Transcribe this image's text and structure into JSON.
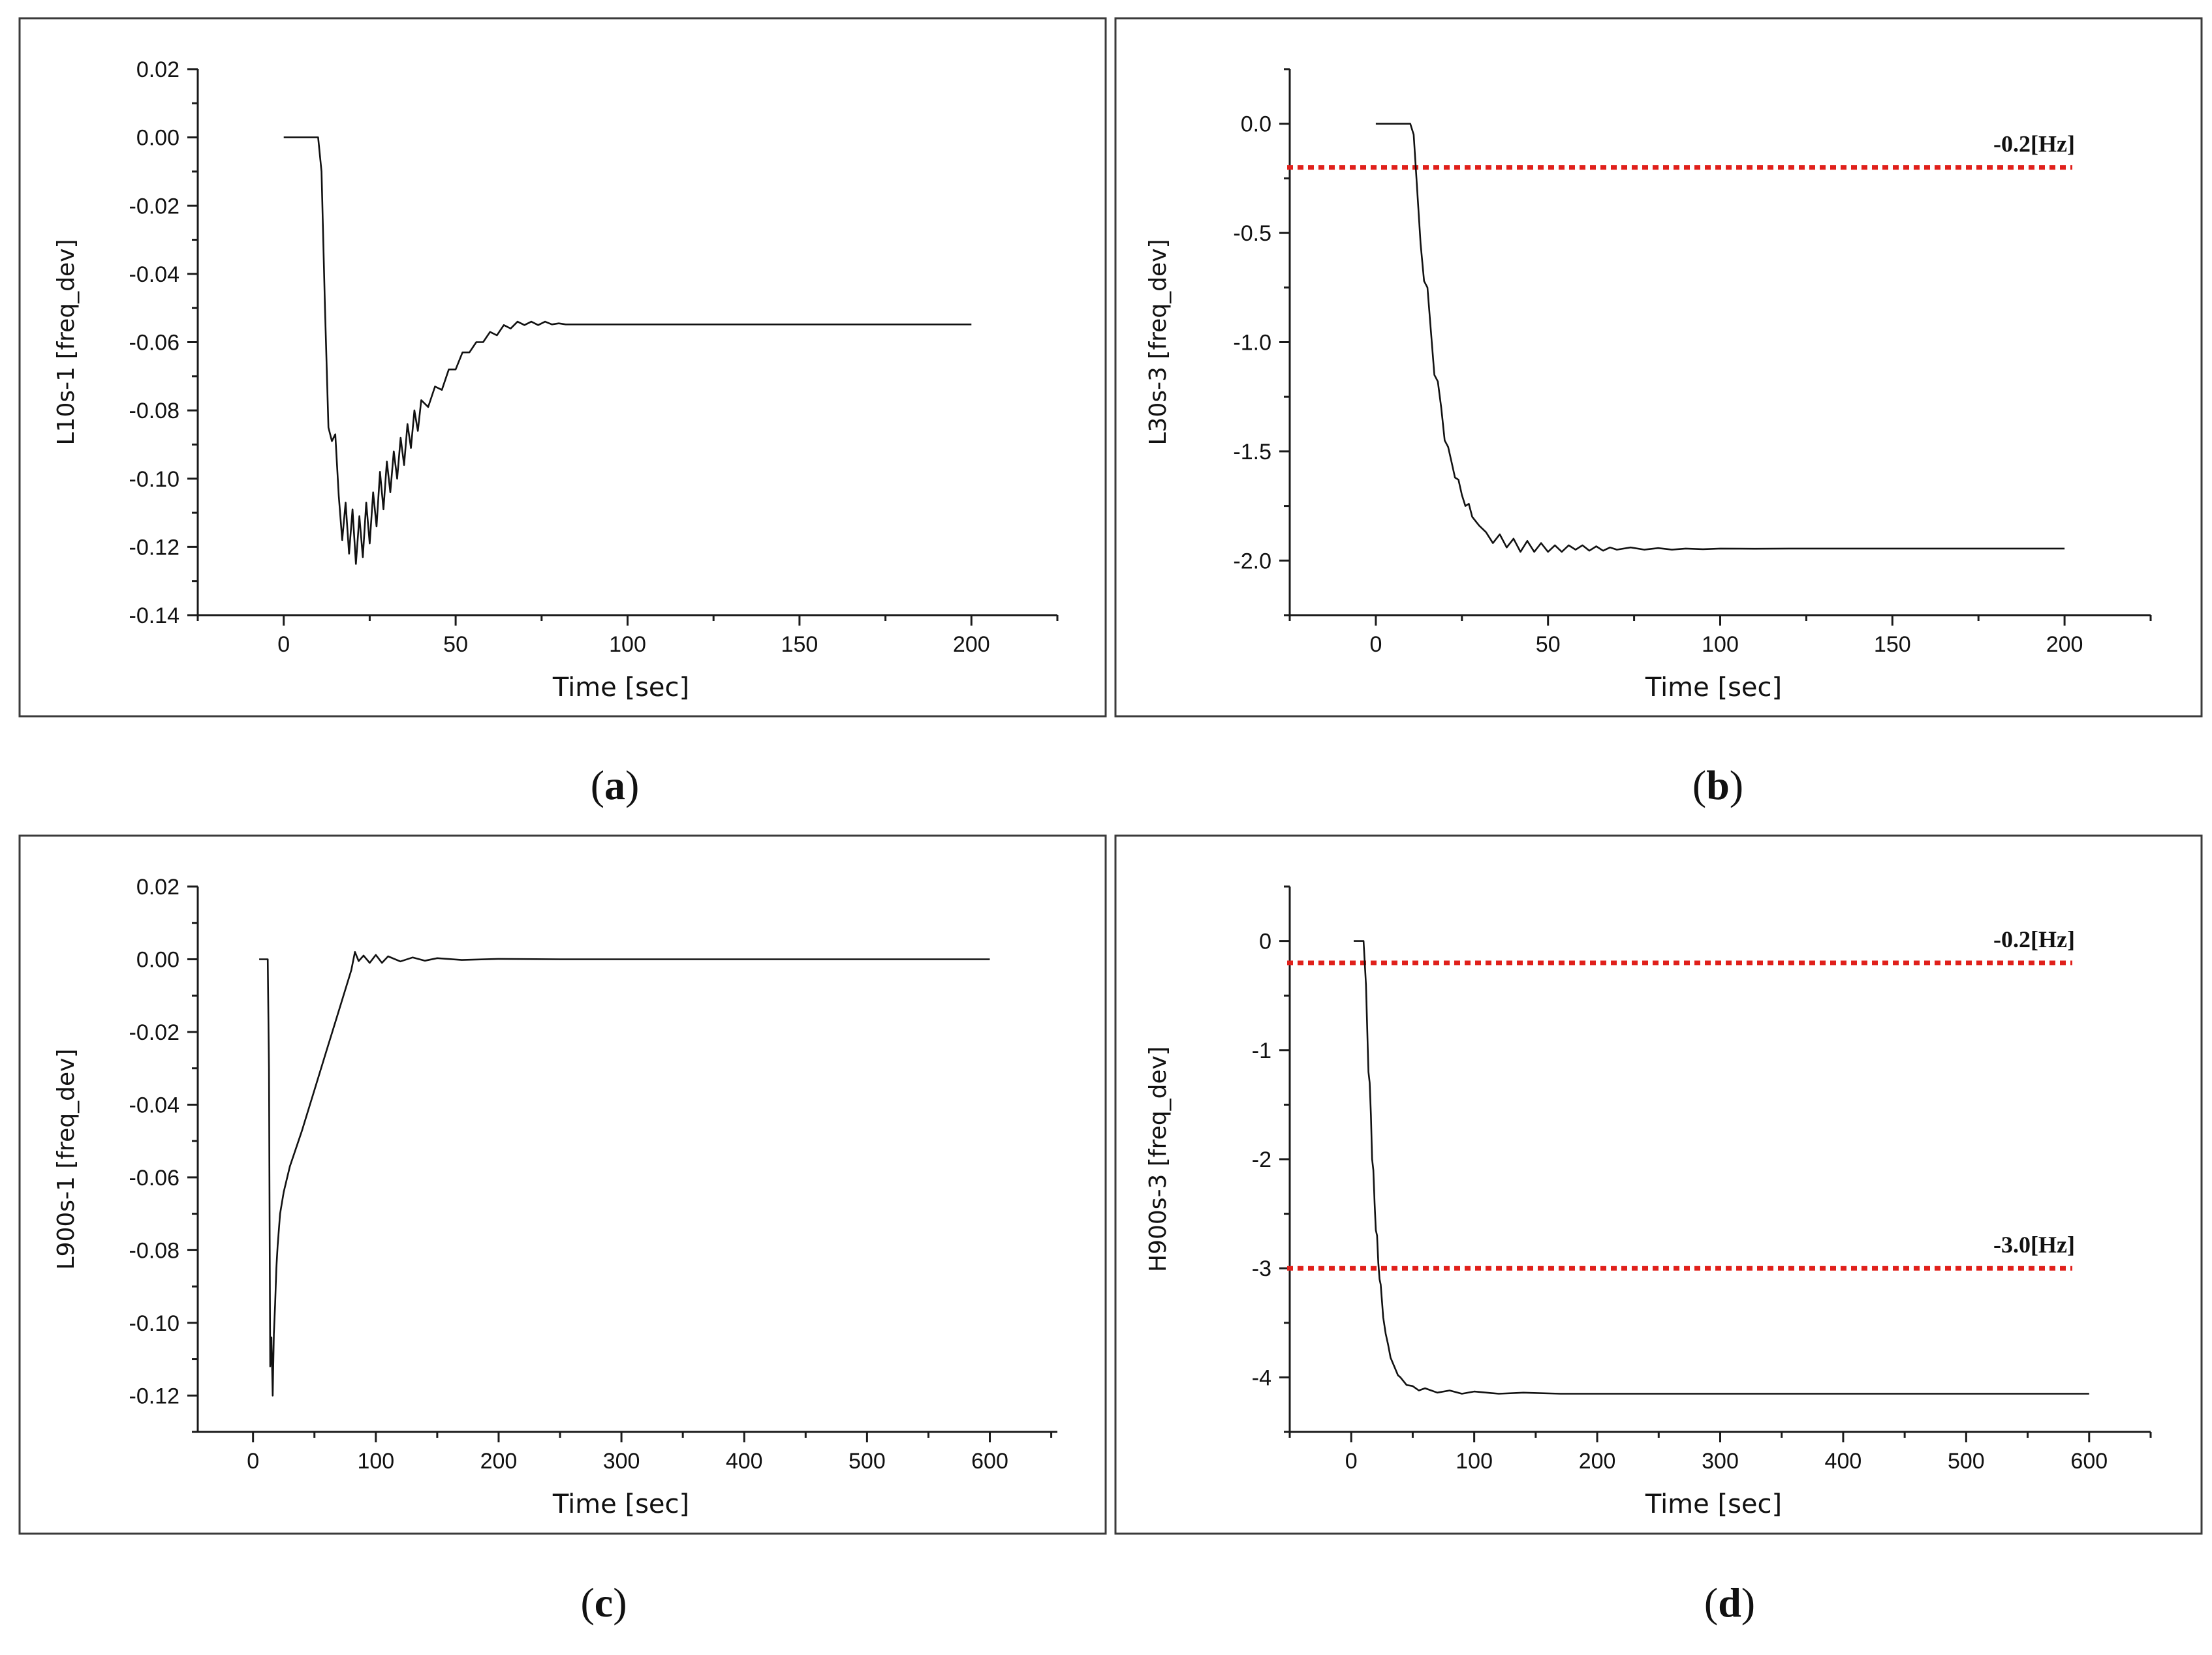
{
  "chart_data": [
    {
      "id": "a",
      "type": "line",
      "caption": "a",
      "xlabel": "Time [sec]",
      "ylabel": "L10s-1 [freq_dev]",
      "xlim": [
        -25,
        225
      ],
      "ylim": [
        -0.14,
        0.02
      ],
      "xticks": [
        0,
        50,
        100,
        150,
        200
      ],
      "yticks": [
        0.02,
        0.0,
        -0.02,
        -0.04,
        -0.06,
        -0.08,
        -0.1,
        -0.12,
        -0.14
      ],
      "ytick_labels": [
        "0.02",
        "0.00",
        "-0.02",
        "-0.04",
        "-0.06",
        "-0.08",
        "-0.10",
        "-0.12",
        "-0.14"
      ],
      "series": [
        {
          "name": "L10s-1",
          "color": "#111111",
          "x": [
            0,
            10,
            11,
            12,
            13,
            14,
            15,
            16,
            17,
            18,
            19,
            20,
            21,
            22,
            23,
            24,
            25,
            26,
            27,
            28,
            29,
            30,
            31,
            32,
            33,
            34,
            35,
            36,
            37,
            38,
            39,
            40,
            42,
            44,
            46,
            48,
            50,
            52,
            54,
            56,
            58,
            60,
            62,
            64,
            66,
            68,
            70,
            72,
            74,
            76,
            78,
            80,
            82,
            90,
            120,
            160,
            200
          ],
          "values": [
            0,
            0,
            -0.01,
            -0.05,
            -0.085,
            -0.089,
            -0.087,
            -0.105,
            -0.118,
            -0.107,
            -0.122,
            -0.109,
            -0.125,
            -0.111,
            -0.123,
            -0.107,
            -0.119,
            -0.104,
            -0.114,
            -0.098,
            -0.109,
            -0.095,
            -0.104,
            -0.092,
            -0.1,
            -0.088,
            -0.096,
            -0.084,
            -0.091,
            -0.08,
            -0.086,
            -0.077,
            -0.079,
            -0.073,
            -0.074,
            -0.068,
            -0.068,
            -0.063,
            -0.063,
            -0.06,
            -0.06,
            -0.057,
            -0.058,
            -0.055,
            -0.056,
            -0.054,
            -0.055,
            -0.054,
            -0.055,
            -0.054,
            -0.0548,
            -0.0545,
            -0.0548,
            -0.0548,
            -0.0548,
            -0.0548,
            -0.0548
          ]
        }
      ],
      "reference_lines": []
    },
    {
      "id": "b",
      "type": "line",
      "caption": "b",
      "xlabel": "Time [sec]",
      "ylabel": "L30s-3 [freq_dev]",
      "xlim": [
        -25,
        225
      ],
      "ylim": [
        -2.25,
        0.25
      ],
      "xticks": [
        0,
        50,
        100,
        150,
        200
      ],
      "yticks": [
        0.0,
        -0.5,
        -1.0,
        -1.5,
        -2.0
      ],
      "ytick_labels": [
        "0.0",
        "-0.5",
        "-1.0",
        "-1.5",
        "-2.0"
      ],
      "series": [
        {
          "name": "L30s-3",
          "color": "#111111",
          "x": [
            0,
            10,
            11,
            12,
            13,
            14,
            15,
            16,
            17,
            18,
            19,
            20,
            21,
            22,
            23,
            24,
            25,
            26,
            27,
            28,
            30,
            32,
            34,
            36,
            38,
            40,
            42,
            44,
            46,
            48,
            50,
            52,
            54,
            56,
            58,
            60,
            62,
            64,
            66,
            68,
            70,
            74,
            78,
            82,
            86,
            90,
            95,
            100,
            110,
            120,
            160,
            200
          ],
          "values": [
            0,
            0,
            -0.05,
            -0.3,
            -0.55,
            -0.72,
            -0.75,
            -0.95,
            -1.15,
            -1.18,
            -1.3,
            -1.45,
            -1.48,
            -1.55,
            -1.62,
            -1.63,
            -1.7,
            -1.75,
            -1.74,
            -1.8,
            -1.84,
            -1.87,
            -1.92,
            -1.88,
            -1.94,
            -1.9,
            -1.96,
            -1.91,
            -1.96,
            -1.92,
            -1.96,
            -1.93,
            -1.96,
            -1.93,
            -1.95,
            -1.93,
            -1.955,
            -1.935,
            -1.955,
            -1.94,
            -1.95,
            -1.94,
            -1.95,
            -1.943,
            -1.95,
            -1.945,
            -1.948,
            -1.945,
            -1.946,
            -1.945,
            -1.945,
            -1.945
          ]
        }
      ],
      "reference_lines": [
        {
          "value": -0.2,
          "label": "-0.2[Hz]",
          "color": "#e0201b"
        }
      ]
    },
    {
      "id": "c",
      "type": "line",
      "caption": "c",
      "xlabel": "Time [sec]",
      "ylabel": "L900s-1 [freq_dev]",
      "xlim": [
        -45,
        655
      ],
      "ylim": [
        -0.13,
        0.02
      ],
      "xticks": [
        0,
        100,
        200,
        300,
        400,
        500,
        600
      ],
      "yticks": [
        0.02,
        0.0,
        -0.02,
        -0.04,
        -0.06,
        -0.08,
        -0.1,
        -0.12
      ],
      "ytick_labels": [
        "0.02",
        "0.00",
        "-0.02",
        "-0.04",
        "-0.06",
        "-0.08",
        "-0.10",
        "-0.12"
      ],
      "series": [
        {
          "name": "L900s-1",
          "color": "#111111",
          "x": [
            5,
            12,
            13,
            14,
            15,
            16,
            17,
            18,
            19,
            20,
            22,
            25,
            30,
            40,
            50,
            60,
            70,
            80,
            83,
            86,
            90,
            95,
            100,
            105,
            110,
            120,
            130,
            140,
            150,
            170,
            200,
            250,
            300,
            400,
            500,
            600
          ],
          "values": [
            0,
            0,
            -0.03,
            -0.112,
            -0.104,
            -0.12,
            -0.103,
            -0.095,
            -0.085,
            -0.079,
            -0.07,
            -0.064,
            -0.057,
            -0.047,
            -0.036,
            -0.025,
            -0.014,
            -0.003,
            0.002,
            -0.0005,
            0.001,
            -0.001,
            0.0012,
            -0.001,
            0.0008,
            -0.0006,
            0.0005,
            -0.0004,
            0.0003,
            -0.0002,
            0.0001,
            0,
            0,
            0,
            0,
            0
          ]
        }
      ],
      "reference_lines": []
    },
    {
      "id": "d",
      "type": "line",
      "caption": "d",
      "xlabel": "Time [sec]",
      "ylabel": "H900s-3 [freq_dev]",
      "xlim": [
        -50,
        650
      ],
      "ylim": [
        -4.5,
        0.5
      ],
      "xticks": [
        0,
        100,
        200,
        300,
        400,
        500,
        600
      ],
      "yticks": [
        0,
        -1,
        -2,
        -3,
        -4
      ],
      "ytick_labels": [
        "0",
        "-1",
        "-2",
        "-3",
        "-4"
      ],
      "series": [
        {
          "name": "H900s-3",
          "color": "#111111",
          "x": [
            2,
            10,
            12,
            14,
            15,
            16,
            17,
            18,
            19,
            20,
            21,
            22,
            23,
            24,
            25,
            26,
            28,
            30,
            32,
            35,
            38,
            40,
            45,
            50,
            55,
            60,
            70,
            80,
            90,
            100,
            120,
            140,
            170,
            200,
            300,
            400,
            500,
            600
          ],
          "values": [
            0,
            0,
            -0.4,
            -1.2,
            -1.3,
            -1.6,
            -2.0,
            -2.1,
            -2.4,
            -2.65,
            -2.7,
            -2.95,
            -3.1,
            -3.15,
            -3.3,
            -3.45,
            -3.6,
            -3.7,
            -3.82,
            -3.9,
            -3.98,
            -4.0,
            -4.07,
            -4.08,
            -4.12,
            -4.1,
            -4.14,
            -4.12,
            -4.15,
            -4.13,
            -4.15,
            -4.14,
            -4.15,
            -4.15,
            -4.15,
            -4.15,
            -4.15,
            -4.15
          ]
        }
      ],
      "reference_lines": [
        {
          "value": -0.2,
          "label": "-0.2[Hz]",
          "color": "#e0201b"
        },
        {
          "value": -3.0,
          "label": "-3.0[Hz]",
          "color": "#e0201b"
        }
      ]
    }
  ]
}
